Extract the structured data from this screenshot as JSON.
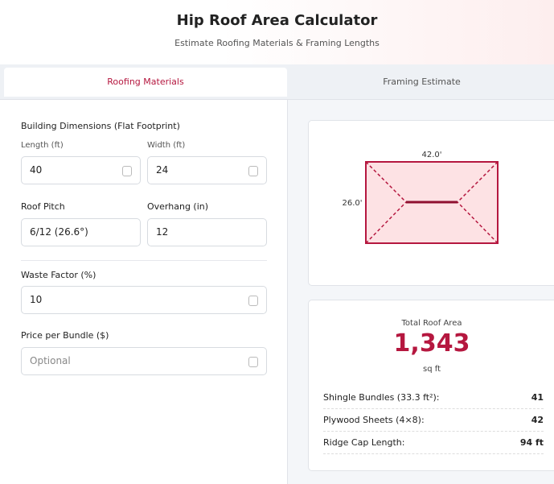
{
  "header": {
    "title": "Hip Roof Area Calculator",
    "subtitle": "Estimate Roofing Materials & Framing Lengths"
  },
  "tabs": [
    "Roofing Materials",
    "Framing Estimate"
  ],
  "form": {
    "section": "Building Dimensions (Flat Footprint)",
    "fields": [
      {
        "label": "Length (ft)",
        "value": "40"
      },
      {
        "label": "Width (ft)",
        "value": "24"
      },
      {
        "label": "Roof Pitch",
        "value": "6/12 (26.6°)"
      },
      {
        "label": "Overhang (in)",
        "value": "12"
      },
      {
        "label": "Waste Factor (%)",
        "value": "10"
      },
      {
        "label": "Price per Bundle ($)",
        "placeholder": "Optional"
      }
    ]
  },
  "diagram": {
    "length_label": "42.0'",
    "width_label": "26.0'"
  },
  "results": {
    "label": "Total Roof Area",
    "value": "1,343",
    "unit": "sq ft",
    "rows": [
      [
        "Shingle Bundles (33.3 ft²):",
        "41"
      ],
      [
        "Plywood Sheets (4×8):",
        "42"
      ],
      [
        "Ridge Cap Length:",
        "94 ft"
      ]
    ]
  }
}
